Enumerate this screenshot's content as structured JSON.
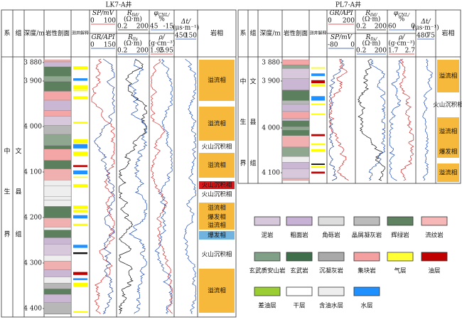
{
  "wells": [
    {
      "title": "LK7-A井",
      "headers": {
        "system": "系",
        "formation": "组",
        "depth": "深度/m",
        "lithology": "岩性剖面",
        "interpretation": "测井解释",
        "facies": "岩相"
      },
      "system_chars": [
        "中",
        "生",
        "界"
      ],
      "formation_chars": [
        "文",
        "县",
        "组"
      ],
      "depths": [
        {
          "value": 3880,
          "label": "3 880"
        },
        {
          "value": 3900,
          "label": "3 900"
        },
        {
          "value": 4000,
          "label": "4 000"
        },
        {
          "value": 4100,
          "label": "4 100"
        },
        {
          "value": 4200,
          "label": "4 200"
        },
        {
          "value": 4300,
          "label": "4 300"
        },
        {
          "value": 4400,
          "label": "4 400"
        }
      ],
      "tracks": [
        [
          {
            "name": "SP/mV",
            "range": [
              0,
              100
            ]
          },
          {
            "name": "GR/API",
            "range": [
              0,
              150
            ]
          }
        ],
        [
          {
            "name": "R",
            "sub": "lld/",
            "unit": "(Ω·m)",
            "range": [
              0.2,
              200
            ]
          },
          {
            "name": "R",
            "sub": "lls",
            "unit": "(Ω·m)",
            "range": [
              0.2,
              200
            ]
          }
        ],
        [
          {
            "name": "φ",
            "sub": "CNL/",
            "unit": "%",
            "range": [
              45,
              -15
            ]
          },
          {
            "name": "ρ/",
            "unit": "(g·cm⁻³)",
            "range": [
              1.95,
              2.95
            ]
          }
        ],
        [
          {
            "name": "Δt/",
            "unit": "(μs·m⁻¹)",
            "range": [
              450,
              150
            ]
          }
        ]
      ],
      "facies": [
        "溢流相",
        "溢流相",
        "火山沉积相",
        "溢流相",
        "火山沉积相",
        "火山沉积相",
        "溢流相",
        "爆发相",
        "溢流相",
        "爆发相",
        "火山沉积相",
        "溢流相"
      ]
    },
    {
      "title": "PL7-A井",
      "headers": {
        "system": "系",
        "formation": "组",
        "depth": "深度/m",
        "lithology": "岩性剖面",
        "interpretation": "测井解释",
        "facies": "岩相"
      },
      "system_chars": [
        "中",
        "生",
        "界"
      ],
      "formation_chars": [
        "文",
        "县",
        "组"
      ],
      "depths": [
        {
          "value": 3880,
          "label": "3 880"
        },
        {
          "value": 3900,
          "label": "3 900"
        },
        {
          "value": 4000,
          "label": "4 000"
        },
        {
          "value": 4100,
          "label": "4 100"
        }
      ],
      "tracks": [
        [
          {
            "name": "GR/API",
            "range": [
              0,
              200
            ]
          },
          {
            "name": "SP/mV",
            "range": [
              -80,
              0
            ]
          }
        ],
        [
          {
            "name": "R",
            "sub": "lld/",
            "unit": "(Ω·m)",
            "range": [
              0.2,
              200
            ]
          },
          {
            "name": "R",
            "sub": "lls/",
            "unit": "(Ω·m)",
            "range": [
              0.2,
              200
            ]
          }
        ],
        [
          {
            "name": "φ",
            "sub": "CNL/",
            "unit": "%",
            "range": [
              60,
              0
            ]
          },
          {
            "name": "ρ/",
            "unit": "(g·cm⁻³)",
            "range": [
              1.7,
              2.7
            ]
          }
        ],
        [
          {
            "name": "Δt/",
            "unit": "(μs·m⁻¹)",
            "range": [
              480,
              75
            ]
          }
        ]
      ],
      "facies": [
        "溢流相",
        "火山沉积相",
        "溢流相",
        "爆发相",
        "溢流相"
      ]
    }
  ],
  "legend": [
    "泥岩",
    "粗面岩",
    "角砾岩",
    "晶屑凝灰岩",
    "辉绿岩",
    "流纹岩",
    "玄武质安山岩",
    "玄武岩",
    "沉凝灰岩",
    "集块岩",
    "气层",
    "油层",
    "差油层",
    "干层",
    "含油水层",
    "水层"
  ]
}
